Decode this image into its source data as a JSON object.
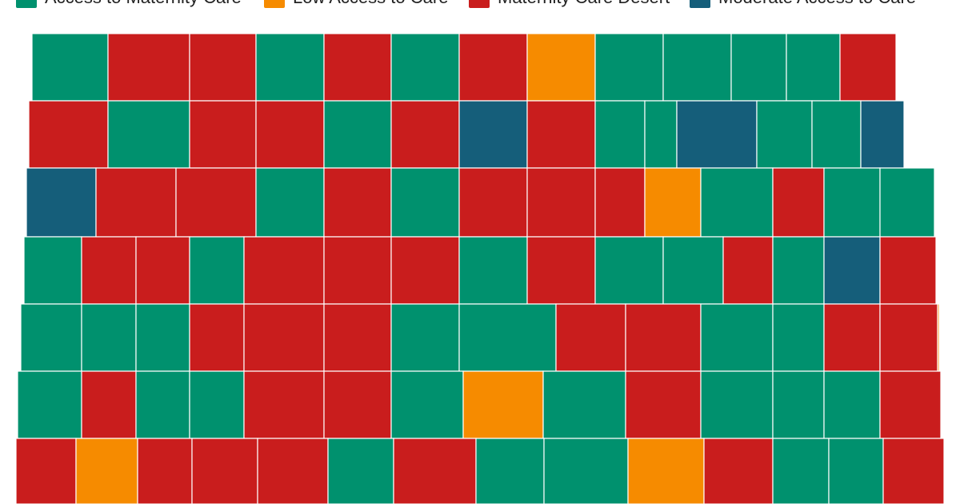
{
  "legend": {
    "items": [
      {
        "key": "access",
        "label": "Access to Maternity Care",
        "color": "#00916E"
      },
      {
        "key": "low",
        "label": "Low Access to Care",
        "color": "#F68B00"
      },
      {
        "key": "desert",
        "label": "Maternity Care Desert",
        "color": "#C91D1D"
      },
      {
        "key": "moderate",
        "label": "Moderate Access to Care",
        "color": "#155E7A"
      }
    ]
  },
  "map": {
    "region": "Kansas counties",
    "counties": [
      {
        "cat": "access"
      },
      {
        "cat": "desert"
      },
      {
        "cat": "desert"
      },
      {
        "cat": "access"
      },
      {
        "cat": "desert"
      },
      {
        "cat": "access"
      },
      {
        "cat": "desert"
      },
      {
        "cat": "low"
      },
      {
        "cat": "access"
      },
      {
        "cat": "access"
      },
      {
        "cat": "access"
      },
      {
        "cat": "access"
      },
      {
        "cat": "desert"
      },
      {
        "cat": "desert"
      },
      {
        "cat": "access"
      },
      {
        "cat": "desert"
      },
      {
        "cat": "desert"
      },
      {
        "cat": "access"
      },
      {
        "cat": "desert"
      },
      {
        "cat": "moderate"
      },
      {
        "cat": "desert"
      },
      {
        "cat": "access"
      },
      {
        "cat": "access"
      },
      {
        "cat": "moderate"
      },
      {
        "cat": "access"
      },
      {
        "cat": "access"
      },
      {
        "cat": "moderate"
      },
      {
        "cat": "moderate"
      },
      {
        "cat": "desert"
      },
      {
        "cat": "desert"
      },
      {
        "cat": "access"
      },
      {
        "cat": "desert"
      },
      {
        "cat": "access"
      },
      {
        "cat": "desert"
      },
      {
        "cat": "desert"
      },
      {
        "cat": "desert"
      },
      {
        "cat": "low"
      },
      {
        "cat": "access"
      },
      {
        "cat": "desert"
      },
      {
        "cat": "access"
      },
      {
        "cat": "access"
      },
      {
        "cat": "access"
      },
      {
        "cat": "desert"
      },
      {
        "cat": "desert"
      },
      {
        "cat": "access"
      },
      {
        "cat": "desert"
      },
      {
        "cat": "desert"
      },
      {
        "cat": "desert"
      },
      {
        "cat": "access"
      },
      {
        "cat": "desert"
      },
      {
        "cat": "access"
      },
      {
        "cat": "access"
      },
      {
        "cat": "desert"
      },
      {
        "cat": "access"
      },
      {
        "cat": "moderate"
      },
      {
        "cat": "desert"
      },
      {
        "cat": "access"
      },
      {
        "cat": "access"
      },
      {
        "cat": "access"
      },
      {
        "cat": "desert"
      },
      {
        "cat": "desert"
      },
      {
        "cat": "desert"
      },
      {
        "cat": "access"
      },
      {
        "cat": "access"
      },
      {
        "cat": "desert"
      },
      {
        "cat": "desert"
      },
      {
        "cat": "access"
      },
      {
        "cat": "access"
      },
      {
        "cat": "desert"
      },
      {
        "cat": "desert"
      },
      {
        "cat": "low"
      },
      {
        "cat": "access"
      },
      {
        "cat": "desert"
      },
      {
        "cat": "access"
      },
      {
        "cat": "access"
      },
      {
        "cat": "desert"
      },
      {
        "cat": "desert"
      },
      {
        "cat": "access"
      },
      {
        "cat": "low"
      },
      {
        "cat": "access"
      },
      {
        "cat": "desert"
      },
      {
        "cat": "access"
      },
      {
        "cat": "access"
      },
      {
        "cat": "access"
      },
      {
        "cat": "desert"
      },
      {
        "cat": "desert"
      },
      {
        "cat": "low"
      },
      {
        "cat": "desert"
      },
      {
        "cat": "desert"
      },
      {
        "cat": "desert"
      },
      {
        "cat": "access"
      },
      {
        "cat": "desert"
      },
      {
        "cat": "access"
      },
      {
        "cat": "access"
      },
      {
        "cat": "low"
      },
      {
        "cat": "desert"
      },
      {
        "cat": "access"
      },
      {
        "cat": "access"
      },
      {
        "cat": "desert"
      }
    ]
  }
}
